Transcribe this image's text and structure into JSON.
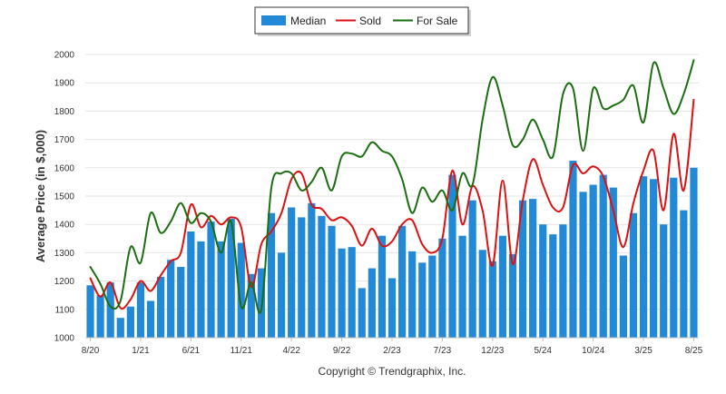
{
  "chart_data": {
    "type": "bar",
    "title": "",
    "ylabel": "Average Price (in $,000)",
    "xlabel": "",
    "ylim": [
      1000,
      2000
    ],
    "yticks": [
      1000,
      1100,
      1200,
      1300,
      1400,
      1500,
      1600,
      1700,
      1800,
      1900,
      2000
    ],
    "xtick_labels": [
      {
        "index": 0,
        "label": "8/20"
      },
      {
        "index": 5,
        "label": "1/21"
      },
      {
        "index": 10,
        "label": "6/21"
      },
      {
        "index": 15,
        "label": "11/21"
      },
      {
        "index": 20,
        "label": "4/22"
      },
      {
        "index": 25,
        "label": "9/22"
      },
      {
        "index": 30,
        "label": "2/23"
      },
      {
        "index": 35,
        "label": "7/23"
      },
      {
        "index": 40,
        "label": "12/23"
      },
      {
        "index": 45,
        "label": "5/24"
      },
      {
        "index": 50,
        "label": "10/24"
      },
      {
        "index": 55,
        "label": "3/25"
      },
      {
        "index": 60,
        "label": "8/25"
      }
    ],
    "categories": [
      "8/20",
      "9/20",
      "10/20",
      "11/20",
      "12/20",
      "1/21",
      "2/21",
      "3/21",
      "4/21",
      "5/21",
      "6/21",
      "7/21",
      "8/21",
      "9/21",
      "10/21",
      "11/21",
      "12/21",
      "1/22",
      "2/22",
      "3/22",
      "4/22",
      "5/22",
      "6/22",
      "7/22",
      "8/22",
      "9/22",
      "10/22",
      "11/22",
      "12/22",
      "1/23",
      "2/23",
      "3/23",
      "4/23",
      "5/23",
      "6/23",
      "7/23",
      "8/23",
      "9/23",
      "10/23",
      "11/23",
      "12/23",
      "1/24",
      "2/24",
      "3/24",
      "4/24",
      "5/24",
      "6/24",
      "7/24",
      "8/24",
      "9/24",
      "10/24",
      "11/24",
      "12/24",
      "1/25",
      "2/25",
      "3/25",
      "4/25",
      "5/25",
      "6/25",
      "7/25",
      "8/25"
    ],
    "grid": true,
    "legend_position": "top-center",
    "series": [
      {
        "name": "Median",
        "type": "bar",
        "color": "#2289d6",
        "values": [
          1185,
          1150,
          1195,
          1070,
          1110,
          1195,
          1130,
          1215,
          1275,
          1250,
          1375,
          1340,
          1410,
          1340,
          1420,
          1335,
          1225,
          1245,
          1440,
          1300,
          1460,
          1425,
          1475,
          1430,
          1395,
          1315,
          1320,
          1175,
          1245,
          1360,
          1210,
          1395,
          1305,
          1265,
          1290,
          1350,
          1575,
          1360,
          1485,
          1310,
          1270,
          1360,
          1295,
          1485,
          1490,
          1400,
          1365,
          1400,
          1625,
          1515,
          1540,
          1575,
          1530,
          1290,
          1440,
          1570,
          1560,
          1400,
          1565,
          1450,
          1600
        ]
      },
      {
        "name": "Sold",
        "type": "line",
        "color": "#dd1111",
        "values": [
          1210,
          1145,
          1195,
          1105,
          1135,
          1200,
          1165,
          1220,
          1270,
          1300,
          1470,
          1390,
          1430,
          1400,
          1425,
          1390,
          1180,
          1330,
          1375,
          1440,
          1560,
          1580,
          1470,
          1455,
          1415,
          1425,
          1395,
          1325,
          1385,
          1325,
          1340,
          1400,
          1415,
          1330,
          1300,
          1350,
          1590,
          1400,
          1535,
          1450,
          1255,
          1555,
          1260,
          1485,
          1630,
          1540,
          1460,
          1460,
          1610,
          1580,
          1605,
          1570,
          1450,
          1320,
          1475,
          1590,
          1660,
          1450,
          1720,
          1520,
          1840
        ]
      },
      {
        "name": "For Sale",
        "type": "line",
        "color": "#1a6e10",
        "values": [
          1250,
          1190,
          1110,
          1130,
          1320,
          1265,
          1440,
          1370,
          1410,
          1475,
          1405,
          1440,
          1410,
          1300,
          1410,
          1110,
          1195,
          1100,
          1530,
          1580,
          1580,
          1520,
          1550,
          1600,
          1520,
          1640,
          1650,
          1640,
          1690,
          1660,
          1640,
          1560,
          1440,
          1530,
          1480,
          1520,
          1450,
          1580,
          1540,
          1770,
          1920,
          1820,
          1680,
          1700,
          1770,
          1700,
          1640,
          1860,
          1880,
          1660,
          1880,
          1810,
          1820,
          1840,
          1890,
          1760,
          1970,
          1880,
          1790,
          1860,
          1980
        ]
      }
    ],
    "annotations": [
      "Copyright © Trendgraphix, Inc."
    ]
  }
}
